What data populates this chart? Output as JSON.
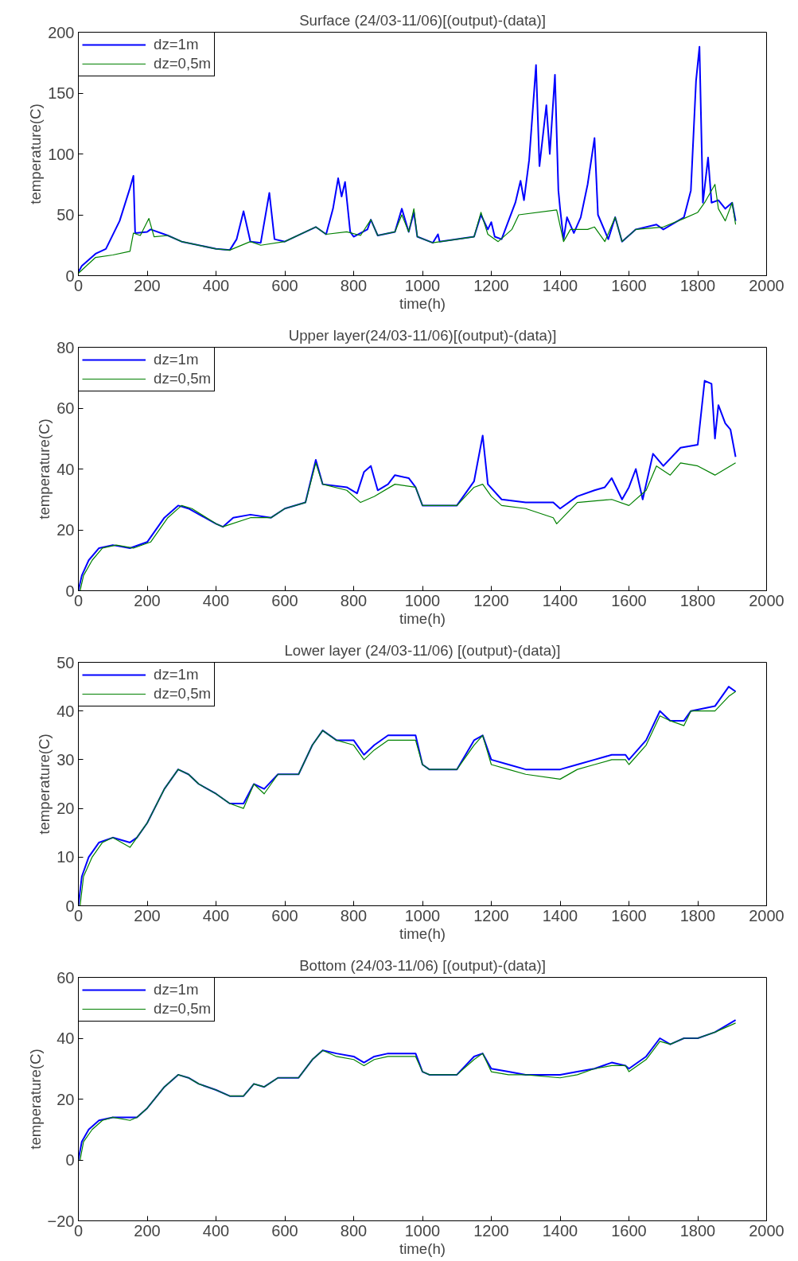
{
  "chart_data": [
    {
      "type": "line",
      "title": "Surface (24/03-11/06)[(output)-(data)]",
      "xlabel": "time(h)",
      "ylabel": "temperature(C)",
      "xlim": [
        0,
        2000
      ],
      "ylim": [
        0,
        200
      ],
      "xticks": [
        0,
        200,
        400,
        600,
        800,
        1000,
        1200,
        1400,
        1600,
        1800,
        2000
      ],
      "yticks": [
        0,
        50,
        100,
        150,
        200
      ],
      "legend": "top left",
      "line_style": "solid",
      "series": [
        {
          "name": "dz=1m",
          "color": "#0000ff",
          "x": [
            0,
            10,
            50,
            80,
            120,
            150,
            160,
            165,
            200,
            210,
            260,
            300,
            400,
            440,
            460,
            480,
            500,
            530,
            555,
            570,
            600,
            690,
            720,
            740,
            755,
            765,
            775,
            790,
            800,
            840,
            850,
            870,
            920,
            940,
            960,
            975,
            985,
            1030,
            1045,
            1050,
            1150,
            1170,
            1190,
            1200,
            1210,
            1230,
            1270,
            1285,
            1295,
            1310,
            1330,
            1340,
            1360,
            1370,
            1385,
            1395,
            1400,
            1410,
            1420,
            1440,
            1460,
            1480,
            1500,
            1510,
            1540,
            1560,
            1580,
            1620,
            1680,
            1700,
            1760,
            1780,
            1795,
            1805,
            1815,
            1830,
            1840,
            1860,
            1880,
            1900,
            1910
          ],
          "values": [
            3,
            8,
            18,
            22,
            45,
            72,
            82,
            35,
            36,
            38,
            33,
            28,
            22,
            21,
            30,
            53,
            28,
            27,
            68,
            30,
            28,
            40,
            34,
            55,
            80,
            65,
            77,
            36,
            32,
            38,
            46,
            33,
            36,
            55,
            36,
            52,
            32,
            27,
            34,
            28,
            32,
            50,
            38,
            44,
            32,
            30,
            60,
            78,
            62,
            95,
            173,
            90,
            140,
            100,
            165,
            70,
            55,
            30,
            48,
            35,
            48,
            75,
            113,
            50,
            30,
            48,
            28,
            38,
            42,
            38,
            48,
            70,
            160,
            188,
            60,
            97,
            60,
            62,
            55,
            60,
            45
          ]
        },
        {
          "name": "dz=0,5m",
          "color": "#008000",
          "x": [
            0,
            50,
            100,
            150,
            160,
            180,
            205,
            220,
            260,
            300,
            400,
            440,
            500,
            530,
            600,
            690,
            720,
            780,
            820,
            850,
            870,
            920,
            940,
            960,
            975,
            985,
            1030,
            1150,
            1170,
            1190,
            1220,
            1260,
            1280,
            1390,
            1410,
            1430,
            1480,
            1500,
            1530,
            1560,
            1580,
            1620,
            1700,
            1760,
            1800,
            1820,
            1850,
            1860,
            1880,
            1900,
            1910
          ],
          "values": [
            2,
            15,
            17,
            20,
            35,
            33,
            47,
            32,
            33,
            28,
            22,
            21,
            28,
            25,
            28,
            40,
            34,
            36,
            33,
            46,
            33,
            36,
            50,
            36,
            55,
            32,
            27,
            32,
            52,
            34,
            28,
            38,
            50,
            54,
            28,
            38,
            38,
            40,
            28,
            48,
            28,
            38,
            40,
            47,
            52,
            60,
            75,
            55,
            45,
            60,
            42
          ]
        }
      ]
    },
    {
      "type": "line",
      "title": "Upper layer(24/03-11/06)[(output)-(data)]",
      "xlabel": "time(h)",
      "ylabel": "temperature(C)",
      "xlim": [
        0,
        2000
      ],
      "ylim": [
        0,
        80
      ],
      "xticks": [
        0,
        200,
        400,
        600,
        800,
        1000,
        1200,
        1400,
        1600,
        1800,
        2000
      ],
      "yticks": [
        0,
        20,
        40,
        60,
        80
      ],
      "legend": "top left",
      "line_style": "solid",
      "series": [
        {
          "name": "dz=1m",
          "color": "#0000ff",
          "x": [
            0,
            10,
            30,
            60,
            100,
            150,
            200,
            250,
            290,
            320,
            400,
            420,
            450,
            500,
            560,
            600,
            660,
            690,
            710,
            780,
            810,
            830,
            850,
            870,
            900,
            920,
            960,
            980,
            1000,
            1100,
            1150,
            1175,
            1190,
            1230,
            1300,
            1380,
            1400,
            1450,
            1500,
            1530,
            1550,
            1580,
            1600,
            1620,
            1640,
            1670,
            1700,
            1750,
            1800,
            1820,
            1840,
            1850,
            1860,
            1880,
            1895,
            1910
          ],
          "values": [
            0,
            5,
            10,
            14,
            15,
            14,
            16,
            24,
            28,
            27,
            22,
            21,
            24,
            25,
            24,
            27,
            29,
            43,
            35,
            34,
            32,
            39,
            41,
            33,
            35,
            38,
            37,
            34,
            28,
            28,
            36,
            51,
            35,
            30,
            29,
            29,
            27,
            31,
            33,
            34,
            37,
            30,
            34,
            40,
            30,
            45,
            41,
            47,
            48,
            69,
            68,
            50,
            61,
            55,
            53,
            44
          ]
        },
        {
          "name": "dz=0,5m",
          "color": "#008000",
          "x": [
            5,
            15,
            40,
            70,
            110,
            160,
            210,
            260,
            300,
            330,
            400,
            420,
            500,
            560,
            600,
            660,
            690,
            710,
            780,
            820,
            860,
            920,
            980,
            1000,
            1100,
            1150,
            1175,
            1200,
            1230,
            1300,
            1380,
            1390,
            1450,
            1550,
            1600,
            1650,
            1680,
            1720,
            1750,
            1800,
            1850,
            1910
          ],
          "values": [
            0,
            5,
            10,
            14,
            15,
            14,
            16,
            24,
            28,
            27,
            22,
            21,
            24,
            24,
            27,
            29,
            42,
            35,
            33,
            29,
            31,
            35,
            34,
            28,
            28,
            34,
            35,
            31,
            28,
            27,
            24,
            22,
            29,
            30,
            28,
            33,
            41,
            38,
            42,
            41,
            38,
            42
          ]
        }
      ]
    },
    {
      "type": "line",
      "title": "Lower layer (24/03-11/06) [(output)-(data)]",
      "xlabel": "time(h)",
      "ylabel": "temperature(C)",
      "xlim": [
        0,
        2000
      ],
      "ylim": [
        0,
        50
      ],
      "xticks": [
        0,
        200,
        400,
        600,
        800,
        1000,
        1200,
        1400,
        1600,
        1800,
        2000
      ],
      "yticks": [
        0,
        10,
        20,
        30,
        40,
        50
      ],
      "legend": "top left",
      "line_style": "solid",
      "series": [
        {
          "name": "dz=1m",
          "color": "#0000ff",
          "x": [
            0,
            10,
            30,
            60,
            100,
            150,
            170,
            200,
            250,
            290,
            320,
            350,
            400,
            440,
            480,
            510,
            540,
            580,
            640,
            680,
            710,
            750,
            800,
            830,
            860,
            900,
            980,
            1000,
            1020,
            1100,
            1150,
            1175,
            1200,
            1250,
            1300,
            1400,
            1450,
            1500,
            1550,
            1590,
            1600,
            1650,
            1690,
            1720,
            1760,
            1780,
            1850,
            1890,
            1910
          ],
          "values": [
            0,
            6,
            10,
            13,
            14,
            13,
            14,
            17,
            24,
            28,
            27,
            25,
            23,
            21,
            21,
            25,
            24,
            27,
            27,
            33,
            36,
            34,
            34,
            31,
            33,
            35,
            35,
            29,
            28,
            28,
            34,
            35,
            30,
            29,
            28,
            28,
            29,
            30,
            31,
            31,
            30,
            34,
            40,
            38,
            38,
            40,
            41,
            45,
            44
          ]
        },
        {
          "name": "dz=0,5m",
          "color": "#008000",
          "x": [
            5,
            15,
            40,
            70,
            100,
            150,
            170,
            200,
            250,
            290,
            320,
            350,
            400,
            440,
            480,
            510,
            540,
            580,
            640,
            680,
            710,
            750,
            800,
            830,
            860,
            900,
            980,
            1000,
            1020,
            1100,
            1150,
            1175,
            1200,
            1250,
            1300,
            1400,
            1450,
            1500,
            1550,
            1590,
            1600,
            1650,
            1690,
            1720,
            1760,
            1780,
            1850,
            1890,
            1910
          ],
          "values": [
            0,
            6,
            10,
            13,
            14,
            12,
            14,
            17,
            24,
            28,
            27,
            25,
            23,
            21,
            20,
            25,
            23,
            27,
            27,
            33,
            36,
            34,
            33,
            30,
            32,
            34,
            34,
            29,
            28,
            28,
            33,
            35,
            29,
            28,
            27,
            26,
            28,
            29,
            30,
            30,
            29,
            33,
            39,
            38,
            37,
            40,
            40,
            43,
            44
          ]
        }
      ]
    },
    {
      "type": "line",
      "title": "Bottom (24/03-11/06) [(output)-(data)]",
      "xlabel": "time(h)",
      "ylabel": "temperature(C)",
      "xlim": [
        0,
        2000
      ],
      "ylim": [
        -20,
        60
      ],
      "xticks": [
        0,
        200,
        400,
        600,
        800,
        1000,
        1200,
        1400,
        1600,
        1800,
        2000
      ],
      "yticks": [
        -20,
        0,
        20,
        40,
        60
      ],
      "legend": "top left",
      "line_style": "solid",
      "series": [
        {
          "name": "dz=1m",
          "color": "#0000ff",
          "x": [
            0,
            10,
            30,
            60,
            100,
            150,
            170,
            200,
            250,
            290,
            320,
            350,
            400,
            440,
            480,
            510,
            540,
            580,
            640,
            680,
            710,
            750,
            800,
            830,
            860,
            900,
            980,
            1000,
            1020,
            1100,
            1150,
            1175,
            1200,
            1250,
            1300,
            1400,
            1450,
            1500,
            1550,
            1590,
            1600,
            1650,
            1690,
            1720,
            1760,
            1800,
            1850,
            1910
          ],
          "values": [
            0,
            6,
            10,
            13,
            14,
            14,
            14,
            17,
            24,
            28,
            27,
            25,
            23,
            21,
            21,
            25,
            24,
            27,
            27,
            33,
            36,
            35,
            34,
            32,
            34,
            35,
            35,
            29,
            28,
            28,
            34,
            35,
            30,
            29,
            28,
            28,
            29,
            30,
            32,
            31,
            30,
            34,
            40,
            38,
            40,
            40,
            42,
            46
          ]
        },
        {
          "name": "dz=0,5m",
          "color": "#008000",
          "x": [
            5,
            15,
            40,
            70,
            100,
            150,
            170,
            200,
            250,
            290,
            320,
            350,
            400,
            440,
            480,
            510,
            540,
            580,
            640,
            680,
            710,
            750,
            800,
            830,
            860,
            900,
            980,
            1000,
            1020,
            1100,
            1150,
            1175,
            1200,
            1250,
            1300,
            1400,
            1450,
            1500,
            1550,
            1590,
            1600,
            1650,
            1690,
            1720,
            1760,
            1800,
            1850,
            1910
          ],
          "values": [
            0,
            6,
            10,
            13,
            14,
            13,
            14,
            17,
            24,
            28,
            27,
            25,
            23,
            21,
            21,
            25,
            24,
            27,
            27,
            33,
            36,
            34,
            33,
            31,
            33,
            34,
            34,
            29,
            28,
            28,
            33,
            35,
            29,
            28,
            28,
            27,
            28,
            30,
            31,
            31,
            29,
            33,
            39,
            38,
            40,
            40,
            42,
            45
          ]
        }
      ]
    }
  ]
}
